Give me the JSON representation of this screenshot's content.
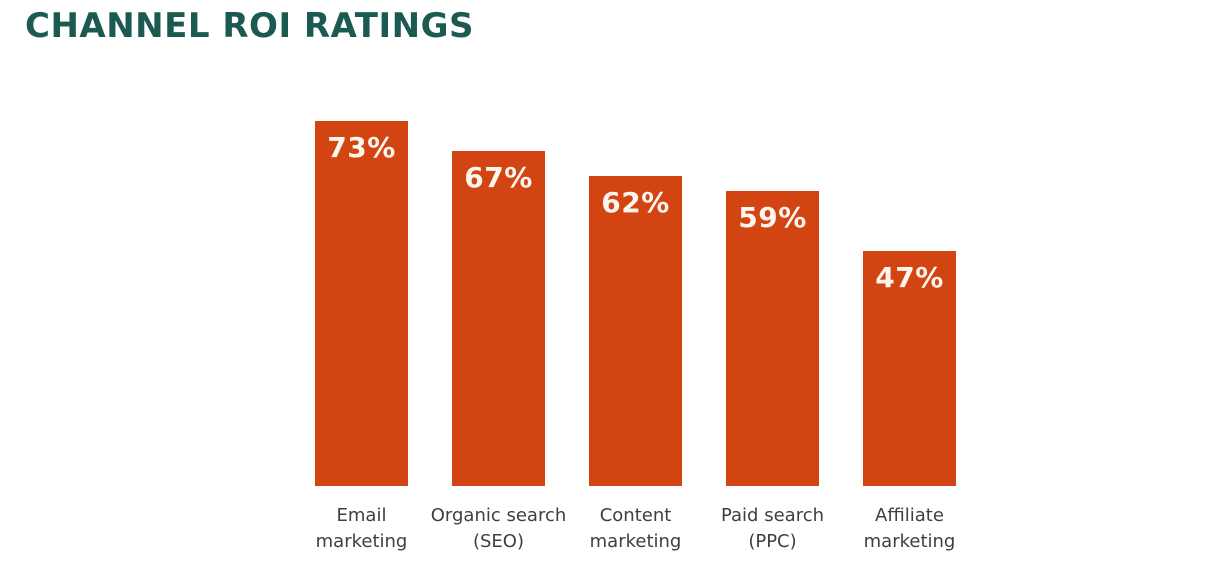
{
  "chart_data": {
    "type": "bar",
    "title": "CHANNEL ROI RATINGS",
    "orientation": "vertical",
    "categories": [
      "Email marketing",
      "Organic search (SEO)",
      "Content marketing",
      "Paid search (PPC)",
      "Affiliate marketing"
    ],
    "category_lines": [
      [
        "Email",
        "marketing"
      ],
      [
        "Organic search",
        "(SEO)"
      ],
      [
        "Content",
        "marketing"
      ],
      [
        "Paid search",
        "(PPC)"
      ],
      [
        "Affiliate",
        "marketing"
      ]
    ],
    "values": [
      73,
      67,
      62,
      59,
      47
    ],
    "value_labels": [
      "73%",
      "67%",
      "62%",
      "59%",
      "47%"
    ],
    "unit": "%",
    "ylim": [
      0,
      100
    ],
    "grid": false,
    "legend": false,
    "value_label_position": "inside-top",
    "colors": {
      "bar": "#D24512",
      "value_label": "#FCF6EE",
      "title": "#1B5A51",
      "category_label": "#3F3F3F",
      "background": "#FFFFFF"
    }
  }
}
